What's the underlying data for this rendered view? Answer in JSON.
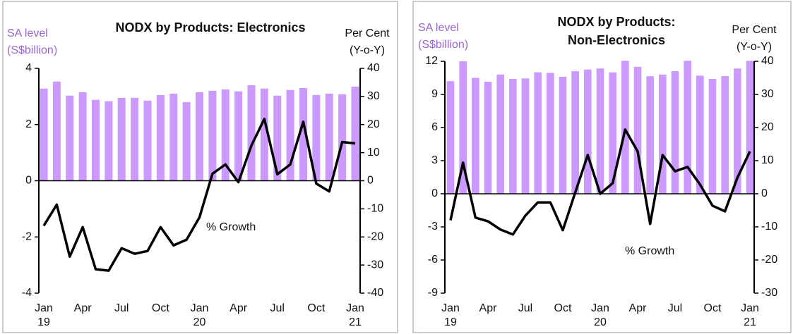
{
  "chart_data": [
    {
      "type": "bar_line",
      "title": [
        "NODX by Products: Electronics"
      ],
      "y_label": [
        "SA level",
        "(S$billion)"
      ],
      "y2_label": [
        "Per Cent",
        "(Y-o-Y)"
      ],
      "annotation": "% Growth",
      "categories": [
        "Jan 19",
        null,
        null,
        "Apr",
        null,
        null,
        "Jul",
        null,
        null,
        "Oct",
        null,
        null,
        "Jan 20",
        null,
        null,
        "Apr",
        null,
        null,
        "Jul",
        null,
        null,
        "Oct",
        null,
        null,
        "Jan 21"
      ],
      "series": [
        {
          "type": "bar",
          "color": "#cc99ff",
          "values": [
            3.28,
            3.53,
            3.03,
            3.15,
            2.88,
            2.83,
            2.95,
            2.95,
            2.85,
            3.05,
            3.1,
            2.8,
            3.15,
            3.2,
            3.25,
            3.18,
            3.4,
            3.28,
            3.03,
            3.23,
            3.3,
            3.05,
            3.1,
            3.08,
            3.35
          ]
        },
        {
          "type": "line",
          "axis": "y2",
          "color": "#000000",
          "values": [
            -16,
            -8.5,
            -27,
            -16.5,
            -31.5,
            -32,
            -24,
            -26,
            -25,
            -16.5,
            -23,
            -21,
            -13,
            2.5,
            5.8,
            -0.5,
            12.5,
            22,
            2.3,
            5.8,
            21,
            -1,
            -3.8,
            13.8,
            13.3
          ]
        }
      ],
      "ylim": [
        -4,
        4
      ],
      "yticks": [
        -4,
        -2,
        0,
        2,
        4
      ],
      "y2lim": [
        -40,
        40
      ],
      "y2ticks": [
        -40,
        -30,
        -20,
        -10,
        0,
        10,
        20,
        30,
        40
      ]
    },
    {
      "type": "bar_line",
      "title": [
        "NODX by Products:",
        "Non-Electronics"
      ],
      "y_label": [
        "SA level",
        "(S$billion)"
      ],
      "y2_label": [
        "Per Cent",
        "(Y-o-Y)"
      ],
      "annotation": "% Growth",
      "categories": [
        "Jan 19",
        null,
        null,
        "Apr",
        null,
        null,
        "Jul",
        null,
        null,
        "Oct",
        null,
        null,
        "Jan 20",
        null,
        null,
        "Apr",
        null,
        null,
        "Jul",
        null,
        null,
        "Oct",
        null,
        null,
        "Jan 21"
      ],
      "series": [
        {
          "type": "bar",
          "color": "#cc99ff",
          "values": [
            10.2,
            12,
            10.5,
            10.15,
            10.8,
            10.4,
            10.45,
            11,
            10.95,
            10.6,
            11.1,
            11.25,
            11.35,
            11,
            12.05,
            11.5,
            10.65,
            10.8,
            11.1,
            12.05,
            10.7,
            10.4,
            10.65,
            11.35,
            12.05
          ]
        },
        {
          "type": "line",
          "axis": "y2",
          "color": "#000000",
          "values": [
            -8,
            9.4,
            -7.2,
            -8.3,
            -10.8,
            -12.3,
            -6.6,
            -2.6,
            -2.6,
            -11,
            0.4,
            11.7,
            0,
            3.2,
            19.4,
            12.8,
            -9.1,
            11.7,
            6.8,
            8.1,
            2.8,
            -3.6,
            -5.3,
            4.9,
            12.8
          ]
        }
      ],
      "ylim": [
        -9,
        12
      ],
      "yticks": [
        -9,
        -6,
        -3,
        0,
        3,
        6,
        9,
        12
      ],
      "y2lim": [
        -30,
        40
      ],
      "y2ticks": [
        -30,
        -20,
        -10,
        0,
        10,
        20,
        30,
        40
      ]
    }
  ]
}
